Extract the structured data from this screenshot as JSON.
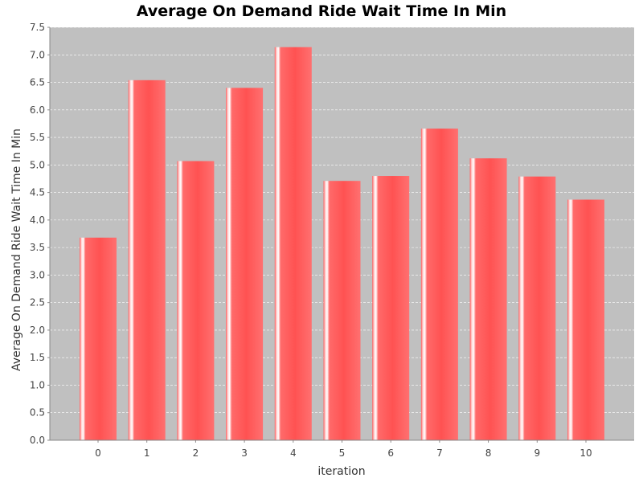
{
  "chart_data": {
    "type": "bar",
    "title": "Average On Demand Ride Wait Time In Min",
    "xlabel": "iteration",
    "ylabel": "Average On Demand Ride Wait Time In Min",
    "categories": [
      "0",
      "1",
      "2",
      "3",
      "4",
      "5",
      "6",
      "7",
      "8",
      "9",
      "10"
    ],
    "values": [
      3.68,
      6.54,
      5.07,
      6.4,
      7.14,
      4.71,
      4.8,
      5.66,
      5.12,
      4.79,
      4.37
    ],
    "ylim": [
      0,
      7.5
    ],
    "yticks": [
      "0.0",
      "0.5",
      "1.0",
      "1.5",
      "2.0",
      "2.5",
      "3.0",
      "3.5",
      "4.0",
      "4.5",
      "5.0",
      "5.5",
      "6.0",
      "6.5",
      "7.0",
      "7.5"
    ],
    "grid": true,
    "legend": "none",
    "colors": {
      "bar": "#ff5555",
      "bar_highlight": "#ffd6d6",
      "plot_background": "#c0c0c0",
      "gridline": "#ffffff"
    }
  }
}
